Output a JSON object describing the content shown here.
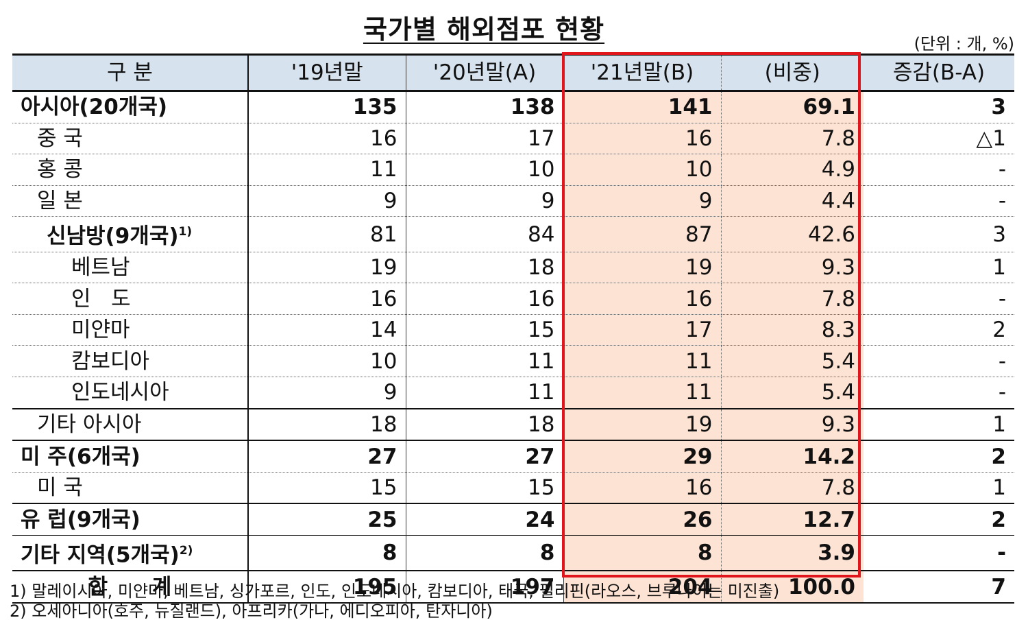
{
  "title": "국가별 해외점포 현황",
  "unit": "(단위 : 개, %)",
  "headers": [
    "구 분",
    "'19년말",
    "'20년말(A)",
    "'21년말(B)",
    "(비중)",
    "증감(B-A)"
  ],
  "rows": [
    {
      "label": "아시아(20개국)",
      "sup": "",
      "v19": "135",
      "v20": "138",
      "v21": "141",
      "share": "69.1",
      "diff": "3"
    },
    {
      "label": "중 국",
      "sup": "",
      "v19": "16",
      "v20": "17",
      "v21": "16",
      "share": "7.8",
      "diff": "△1"
    },
    {
      "label": "홍 콩",
      "sup": "",
      "v19": "11",
      "v20": "10",
      "v21": "10",
      "share": "4.9",
      "diff": "-"
    },
    {
      "label": "일 본",
      "sup": "",
      "v19": "9",
      "v20": "9",
      "v21": "9",
      "share": "4.4",
      "diff": "-"
    },
    {
      "label": "신남방(9개국)",
      "sup": "1)",
      "v19": "81",
      "v20": "84",
      "v21": "87",
      "share": "42.6",
      "diff": "3"
    },
    {
      "label": "베트남",
      "sup": "",
      "v19": "19",
      "v20": "18",
      "v21": "19",
      "share": "9.3",
      "diff": "1"
    },
    {
      "label": "인   도",
      "sup": "",
      "v19": "16",
      "v20": "16",
      "v21": "16",
      "share": "7.8",
      "diff": "-"
    },
    {
      "label": "미얀마",
      "sup": "",
      "v19": "14",
      "v20": "15",
      "v21": "17",
      "share": "8.3",
      "diff": "2"
    },
    {
      "label": "캄보디아",
      "sup": "",
      "v19": "10",
      "v20": "11",
      "v21": "11",
      "share": "5.4",
      "diff": "-"
    },
    {
      "label": "인도네시아",
      "sup": "",
      "v19": "9",
      "v20": "11",
      "v21": "11",
      "share": "5.4",
      "diff": "-"
    },
    {
      "label": "기타 아시아",
      "sup": "",
      "v19": "18",
      "v20": "18",
      "v21": "19",
      "share": "9.3",
      "diff": "1"
    },
    {
      "label": "미 주(6개국)",
      "sup": "",
      "v19": "27",
      "v20": "27",
      "v21": "29",
      "share": "14.2",
      "diff": "2"
    },
    {
      "label": "미 국",
      "sup": "",
      "v19": "15",
      "v20": "15",
      "v21": "16",
      "share": "7.8",
      "diff": "1"
    },
    {
      "label": "유 럽(9개국)",
      "sup": "",
      "v19": "25",
      "v20": "24",
      "v21": "26",
      "share": "12.7",
      "diff": "2"
    },
    {
      "label": "기타 지역(5개국)",
      "sup": "2)",
      "v19": "8",
      "v20": "8",
      "v21": "8",
      "share": "3.9",
      "diff": "-"
    },
    {
      "label": "합      계",
      "sup": "",
      "v19": "195",
      "v20": "197",
      "v21": "204",
      "share": "100.0",
      "diff": "7"
    }
  ],
  "notes": [
    "1) 말레이시아, 미얀마, 베트남, 싱가포르, 인도, 인도네시아, 캄보디아, 태국, 필리핀(라오스, 브루나이는 미진출)",
    "2) 오세아니아(호주, 뉴질랜드), 아프리카(가나, 에디오피아, 탄자니아)"
  ]
}
